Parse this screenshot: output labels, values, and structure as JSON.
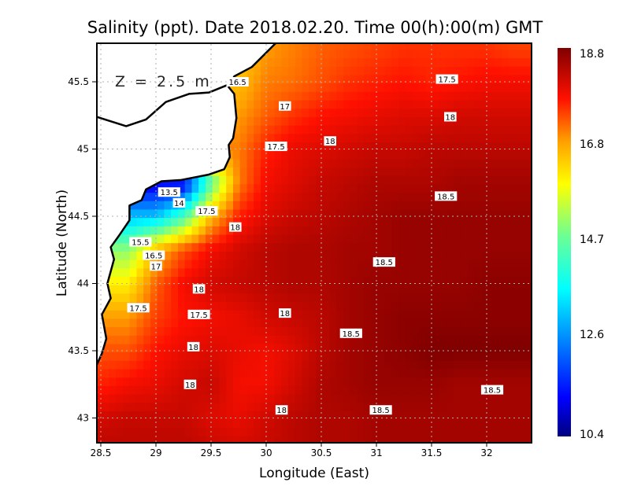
{
  "chart_data": {
    "type": "heatmap",
    "title": "Salinity (ppt). Date 2018.02.20. Time 00(h):00(m) GMT",
    "annotation": "Z = 2.5 m",
    "xlabel": "Longitude (East)",
    "ylabel": "Latitude (North)",
    "xlim": [
      28.46,
      32.4
    ],
    "ylim": [
      42.81,
      45.79
    ],
    "xticks": [
      "28.5",
      "29",
      "29.5",
      "30",
      "30.5",
      "31",
      "31.5",
      "32"
    ],
    "xtick_values": [
      28.5,
      29,
      29.5,
      30,
      30.5,
      31,
      31.5,
      32
    ],
    "yticks": [
      "43",
      "43.5",
      "44",
      "44.5",
      "45",
      "45.5"
    ],
    "ytick_values": [
      43,
      43.5,
      44,
      44.5,
      45,
      45.5
    ],
    "grid": true,
    "colorbar": {
      "min": 10.4,
      "max": 18.8,
      "ticks": [
        "10.4",
        "12.6",
        "14.7",
        "16.8",
        "18.8"
      ],
      "tick_values": [
        10.4,
        12.6,
        14.7,
        16.8,
        18.8
      ],
      "placement": "right"
    },
    "grid_lon": [
      28.5,
      28.75,
      29,
      29.25,
      29.5,
      29.75,
      30,
      30.25,
      30.5,
      30.75,
      31,
      31.25,
      31.5,
      31.75,
      32,
      32.25,
      32.5
    ],
    "grid_lat": [
      45.75,
      45.5,
      45.25,
      45.0,
      44.75,
      44.5,
      44.25,
      44.0,
      43.75,
      43.5,
      43.25,
      43.0,
      42.75
    ],
    "salinity": [
      [
        null,
        null,
        null,
        null,
        null,
        16.3,
        16.8,
        17.0,
        17.2,
        17.3,
        17.4,
        17.5,
        17.5,
        17.5,
        17.5,
        17.4,
        17.4
      ],
      [
        null,
        null,
        null,
        null,
        null,
        16.5,
        17.0,
        17.1,
        17.3,
        17.5,
        17.6,
        17.7,
        17.6,
        17.7,
        17.8,
        17.8,
        17.8
      ],
      [
        null,
        null,
        null,
        null,
        null,
        16.8,
        17.2,
        17.5,
        17.7,
        17.8,
        17.9,
        18.0,
        18.0,
        18.1,
        18.1,
        18.1,
        18.1
      ],
      [
        null,
        null,
        null,
        null,
        null,
        17.0,
        17.6,
        17.9,
        18.0,
        18.1,
        18.2,
        18.2,
        18.3,
        18.3,
        18.3,
        18.3,
        18.3
      ],
      [
        null,
        null,
        null,
        11.0,
        14.5,
        17.0,
        17.8,
        18.0,
        18.2,
        18.3,
        18.4,
        18.4,
        18.4,
        18.5,
        18.5,
        18.5,
        18.5
      ],
      [
        null,
        null,
        13.0,
        14.3,
        16.5,
        17.6,
        18.0,
        18.2,
        18.3,
        18.4,
        18.5,
        18.6,
        18.6,
        18.6,
        18.6,
        18.6,
        18.6
      ],
      [
        null,
        15.0,
        16.5,
        17.3,
        17.8,
        18.1,
        18.3,
        18.4,
        18.4,
        18.5,
        18.5,
        18.6,
        18.6,
        18.6,
        18.6,
        18.6,
        18.6
      ],
      [
        null,
        16.0,
        17.2,
        17.8,
        18.1,
        18.2,
        18.3,
        18.4,
        18.4,
        18.5,
        18.6,
        18.6,
        18.6,
        18.6,
        18.7,
        18.7,
        18.7
      ],
      [
        null,
        16.8,
        17.4,
        17.7,
        17.8,
        17.9,
        18.1,
        18.2,
        18.3,
        18.5,
        18.6,
        18.7,
        18.7,
        18.7,
        18.7,
        18.7,
        18.7
      ],
      [
        null,
        17.3,
        17.7,
        17.9,
        18.0,
        17.9,
        17.8,
        18.0,
        18.3,
        18.5,
        18.6,
        18.7,
        18.8,
        18.8,
        18.8,
        18.8,
        18.8
      ],
      [
        17.6,
        17.8,
        17.9,
        18.1,
        18.2,
        17.8,
        17.8,
        18.1,
        18.4,
        18.5,
        18.6,
        18.6,
        18.6,
        18.5,
        18.5,
        18.5,
        18.5
      ],
      [
        18.1,
        18.2,
        18.2,
        18.2,
        18.0,
        17.9,
        18.1,
        18.3,
        18.4,
        18.4,
        18.5,
        18.5,
        18.5,
        18.5,
        18.5,
        18.5,
        18.5
      ],
      [
        18.3,
        18.3,
        18.3,
        18.3,
        18.2,
        18.1,
        18.2,
        18.3,
        18.4,
        18.4,
        18.5,
        18.5,
        18.5,
        18.5,
        18.5,
        18.5,
        18.5
      ]
    ],
    "contour_labels": [
      {
        "text": "16.5",
        "lon": 29.74,
        "lat": 45.5
      },
      {
        "text": "17.5",
        "lon": 31.64,
        "lat": 45.52
      },
      {
        "text": "17",
        "lon": 30.17,
        "lat": 45.32
      },
      {
        "text": "18",
        "lon": 31.67,
        "lat": 45.24
      },
      {
        "text": "17.5",
        "lon": 30.09,
        "lat": 45.02
      },
      {
        "text": "18",
        "lon": 30.58,
        "lat": 45.06
      },
      {
        "text": "18.5",
        "lon": 31.63,
        "lat": 44.65
      },
      {
        "text": "13.5",
        "lon": 29.12,
        "lat": 44.68
      },
      {
        "text": "14",
        "lon": 29.21,
        "lat": 44.6
      },
      {
        "text": "17.5",
        "lon": 29.46,
        "lat": 44.54
      },
      {
        "text": "18",
        "lon": 29.72,
        "lat": 44.42
      },
      {
        "text": "15.5",
        "lon": 28.86,
        "lat": 44.31
      },
      {
        "text": "16.5",
        "lon": 28.98,
        "lat": 44.21
      },
      {
        "text": "17",
        "lon": 29.0,
        "lat": 44.13
      },
      {
        "text": "18.5",
        "lon": 31.07,
        "lat": 44.16
      },
      {
        "text": "18",
        "lon": 29.39,
        "lat": 43.96
      },
      {
        "text": "17.5",
        "lon": 28.84,
        "lat": 43.82
      },
      {
        "text": "17.5",
        "lon": 29.39,
        "lat": 43.77
      },
      {
        "text": "18",
        "lon": 30.17,
        "lat": 43.78
      },
      {
        "text": "18.5",
        "lon": 30.77,
        "lat": 43.63
      },
      {
        "text": "18",
        "lon": 29.34,
        "lat": 43.53
      },
      {
        "text": "18",
        "lon": 29.31,
        "lat": 43.25
      },
      {
        "text": "18.5",
        "lon": 32.05,
        "lat": 43.21
      },
      {
        "text": "18",
        "lon": 30.14,
        "lat": 43.06
      },
      {
        "text": "18.5",
        "lon": 31.04,
        "lat": 43.06
      }
    ],
    "coastline": [
      [
        30.09,
        45.79
      ],
      [
        29.87,
        45.61
      ],
      [
        29.71,
        45.54
      ],
      [
        29.66,
        45.46
      ],
      [
        29.71,
        45.41
      ],
      [
        29.73,
        45.23
      ],
      [
        29.7,
        45.08
      ],
      [
        29.66,
        45.03
      ],
      [
        29.67,
        44.94
      ],
      [
        29.62,
        44.85
      ],
      [
        29.48,
        44.81
      ],
      [
        29.23,
        44.77
      ],
      [
        29.05,
        44.76
      ],
      [
        28.91,
        44.7
      ],
      [
        28.87,
        44.62
      ],
      [
        28.76,
        44.58
      ],
      [
        28.76,
        44.47
      ],
      [
        28.66,
        44.35
      ],
      [
        28.59,
        44.27
      ],
      [
        28.62,
        44.18
      ],
      [
        28.56,
        44.0
      ],
      [
        28.59,
        43.89
      ],
      [
        28.51,
        43.77
      ],
      [
        28.55,
        43.59
      ],
      [
        28.51,
        43.48
      ],
      [
        28.46,
        43.39
      ]
    ],
    "inland_line": [
      [
        28.46,
        45.24
      ],
      [
        28.73,
        45.17
      ],
      [
        28.91,
        45.22
      ],
      [
        29.09,
        45.35
      ],
      [
        29.3,
        45.41
      ],
      [
        29.48,
        45.42
      ],
      [
        29.66,
        45.48
      ]
    ],
    "colors": {
      "frame": "#000000",
      "grid": "#b0b0b0",
      "land": "#ffffff",
      "label_bg": "#ffffff"
    }
  }
}
